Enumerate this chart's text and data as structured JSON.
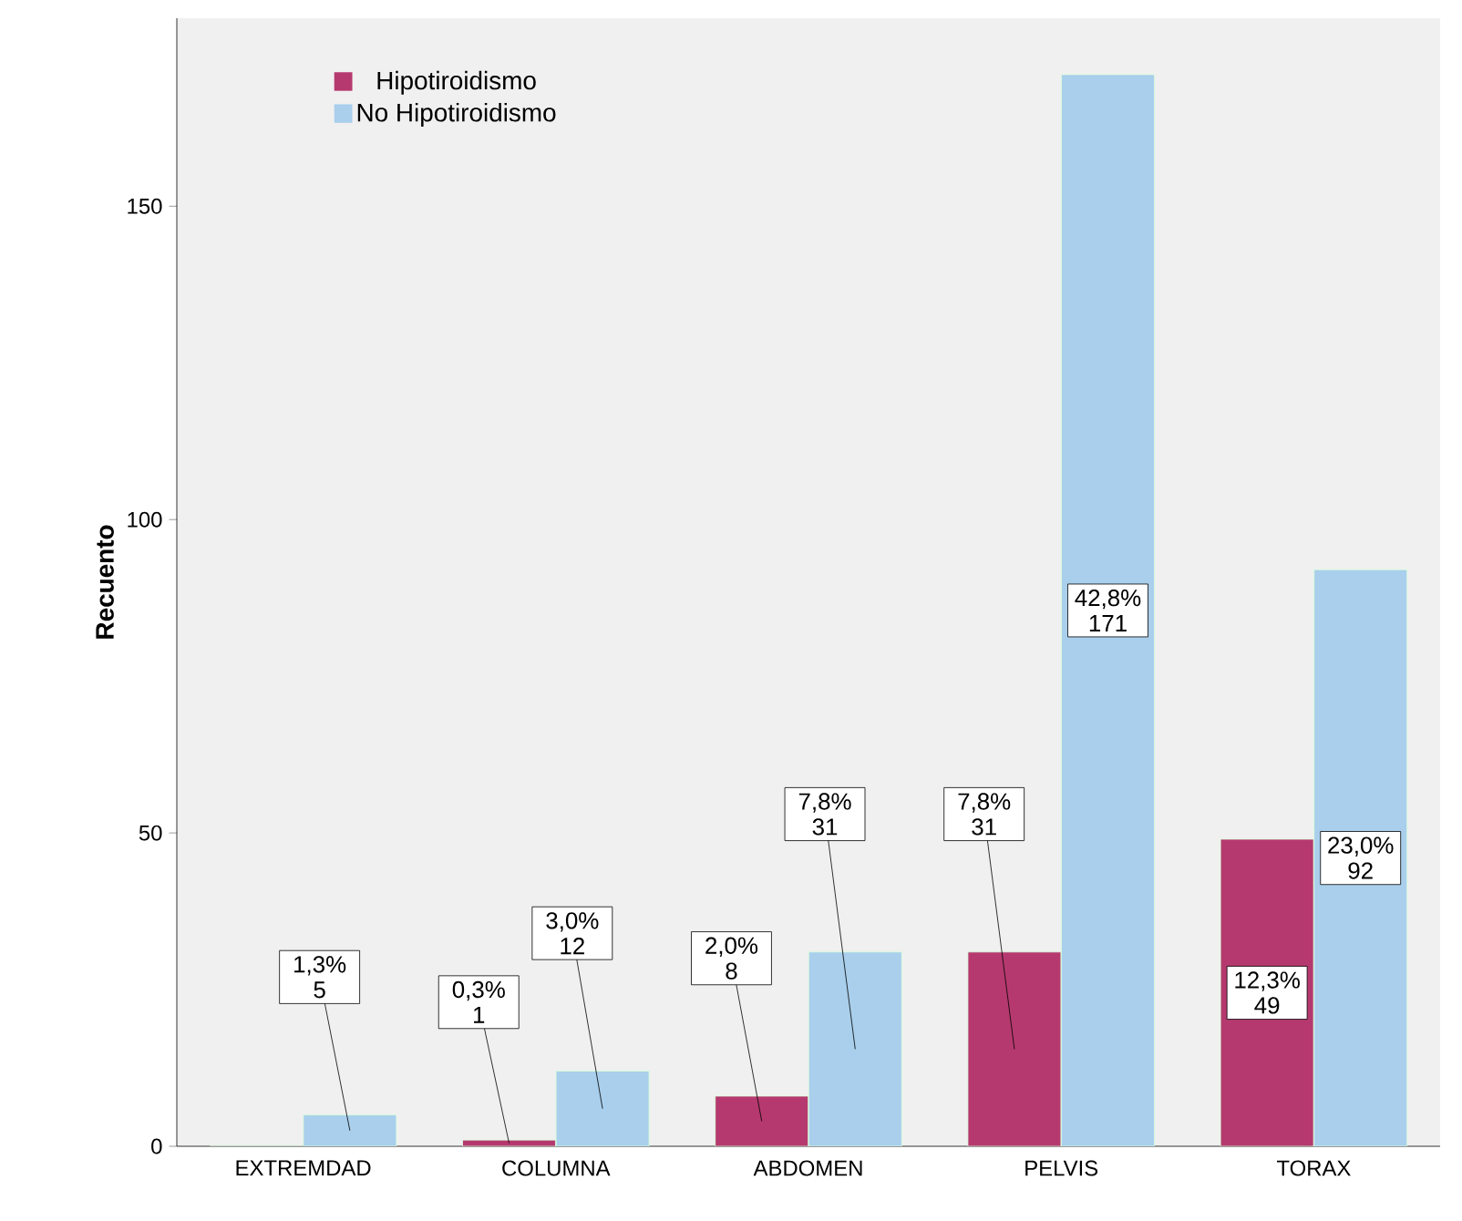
{
  "chart_data": {
    "type": "bar",
    "ylabel": "Recuento",
    "categories": [
      "EXTREMDAD",
      "COLUMNA",
      "ABDOMEN",
      "PELVIS",
      "TORAX"
    ],
    "series": [
      {
        "name": "Hipotiroidismo",
        "color": "#b5396f",
        "values": [
          0,
          1,
          8,
          31,
          49
        ],
        "value_labels": [
          null,
          "0,3% 1",
          "2,0% 8",
          "7,8% 31",
          "12,3% 49"
        ]
      },
      {
        "name": "No Hipotiroidismo",
        "color": "#a9cfec",
        "values": [
          5,
          12,
          31,
          171,
          92
        ],
        "value_labels": [
          "1,3% 5",
          "3,0% 12",
          "7,8% 31",
          "42,8% 171",
          "23,0% 92"
        ]
      }
    ],
    "ylim": [
      0,
      180
    ],
    "yticks": [
      0,
      50,
      100,
      150
    ],
    "grid": false,
    "legend": "top left"
  }
}
